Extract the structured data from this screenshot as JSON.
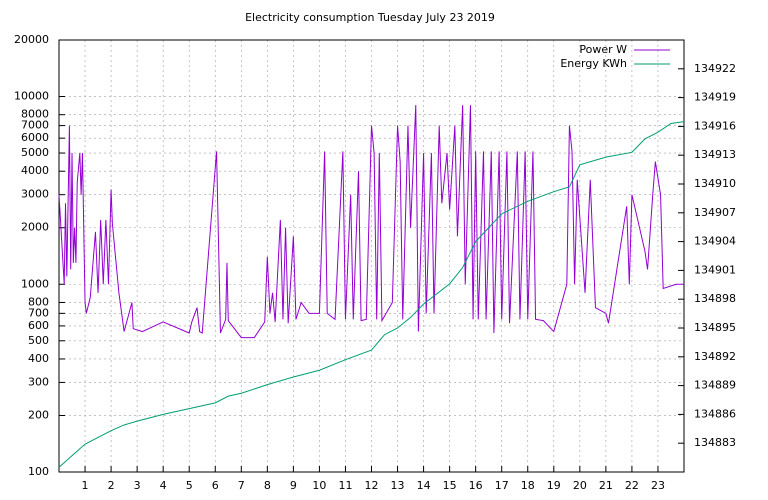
{
  "chart_data": {
    "type": "line",
    "title": "Electricity consumption Tuesday July 23 2019",
    "xlim": [
      0,
      24
    ],
    "xticks": [
      1,
      2,
      3,
      4,
      5,
      6,
      7,
      8,
      9,
      10,
      11,
      12,
      13,
      14,
      15,
      16,
      17,
      18,
      19,
      20,
      21,
      22,
      23
    ],
    "ylim": [
      100,
      20000
    ],
    "log_y": true,
    "yticks": [
      100,
      200,
      300,
      400,
      500,
      600,
      700,
      800,
      1000,
      2000,
      3000,
      4000,
      5000,
      6000,
      7000,
      8000,
      10000,
      20000
    ],
    "y2lim": [
      134880,
      134925
    ],
    "y2ticks": [
      134883,
      134886,
      134889,
      134892,
      134895,
      134898,
      134901,
      134904,
      134907,
      134910,
      134913,
      134916,
      134919,
      134922
    ],
    "grid": true,
    "legend": "top-right",
    "series": [
      {
        "name": "Power W",
        "color": "#9400d3",
        "x": [
          0,
          0.2,
          0.25,
          0.3,
          0.4,
          0.45,
          0.5,
          0.55,
          0.6,
          0.65,
          0.7,
          0.8,
          0.85,
          0.9,
          1.0,
          1.05,
          1.2,
          1.4,
          1.5,
          1.6,
          1.7,
          1.8,
          1.9,
          2.0,
          2.05,
          2.3,
          2.5,
          2.8,
          2.85,
          3.2,
          4.0,
          5.0,
          5.1,
          5.3,
          5.4,
          5.5,
          6.05,
          6.2,
          6.4,
          6.45,
          6.5,
          7.0,
          7.5,
          7.9,
          8.0,
          8.1,
          8.2,
          8.3,
          8.5,
          8.6,
          8.7,
          8.8,
          9.0,
          9.1,
          9.3,
          9.6,
          10.0,
          10.2,
          10.3,
          10.6,
          10.9,
          11.0,
          11.2,
          11.3,
          11.5,
          11.6,
          11.8,
          12.0,
          12.1,
          12.2,
          12.3,
          12.4,
          12.8,
          13.0,
          13.1,
          13.2,
          13.4,
          13.5,
          13.7,
          13.8,
          14.0,
          14.1,
          14.3,
          14.4,
          14.6,
          14.7,
          14.9,
          15.0,
          15.2,
          15.3,
          15.5,
          15.6,
          15.8,
          15.9,
          16.0,
          16.1,
          16.3,
          16.4,
          16.6,
          16.7,
          16.9,
          17.0,
          17.2,
          17.3,
          17.6,
          17.7,
          17.9,
          18.0,
          18.2,
          18.3,
          18.6,
          19.0,
          19.5,
          19.6,
          19.7,
          19.8,
          19.9,
          20.2,
          20.4,
          20.6,
          21.0,
          21.1,
          21.8,
          21.9,
          22.0,
          22.5,
          22.6,
          22.8,
          22.9,
          23.1,
          23.2,
          23.7,
          24.0
        ],
        "values": [
          3000,
          1000,
          2700,
          1100,
          7000,
          1200,
          5000,
          1300,
          2000,
          1300,
          3500,
          5000,
          3000,
          5000,
          800,
          700,
          850,
          1900,
          900,
          2200,
          1000,
          2200,
          1000,
          3200,
          2100,
          900,
          560,
          800,
          580,
          560,
          630,
          550,
          630,
          750,
          560,
          550,
          5100,
          550,
          650,
          1300,
          640,
          520,
          520,
          630,
          1400,
          700,
          900,
          630,
          2200,
          650,
          2000,
          620,
          1800,
          650,
          800,
          700,
          700,
          5100,
          700,
          650,
          5100,
          650,
          3000,
          650,
          4000,
          640,
          650,
          7000,
          5000,
          650,
          5000,
          640,
          800,
          7000,
          4500,
          650,
          7000,
          2000,
          9000,
          560,
          5000,
          700,
          5000,
          700,
          7000,
          2700,
          5000,
          2500,
          7000,
          1800,
          9000,
          1000,
          9000,
          650,
          5100,
          650,
          5100,
          650,
          5100,
          550,
          5100,
          650,
          5100,
          620,
          5100,
          650,
          5100,
          650,
          5100,
          650,
          640,
          560,
          1000,
          7000,
          5100,
          1000,
          3600,
          900,
          3600,
          750,
          700,
          620,
          2600,
          1000,
          3000,
          1500,
          1200,
          3000,
          4500,
          3000,
          950,
          1000,
          1000
        ]
      },
      {
        "name": "Energy KWh",
        "color": "#009e73",
        "axis": "y2",
        "x": [
          0,
          1,
          2,
          2.5,
          3,
          4,
          5,
          6,
          6.5,
          7,
          8,
          9,
          10,
          11,
          12,
          12.5,
          13,
          13.5,
          14,
          15,
          15.5,
          16,
          17,
          18,
          19,
          19.6,
          20,
          21,
          22,
          22.5,
          23,
          23.5,
          24
        ],
        "values": [
          134880.5,
          134882.9,
          134884.3,
          134884.9,
          134885.3,
          134886,
          134886.6,
          134887.2,
          134887.9,
          134888.2,
          134889.1,
          134889.9,
          134890.6,
          134891.7,
          134892.7,
          134894.3,
          134895,
          134896.1,
          134897.5,
          134899.6,
          134901.3,
          134904,
          134906.9,
          134908.2,
          134909.2,
          134909.7,
          134912,
          134912.8,
          134913.3,
          134914.7,
          134915.4,
          134916.3,
          134916.5
        ]
      }
    ]
  }
}
